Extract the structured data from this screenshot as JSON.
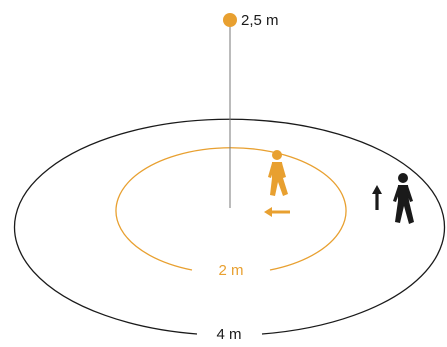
{
  "sensor": {
    "height_label": "2,5 m"
  },
  "outer_zone": {
    "diameter_label": "4 m"
  },
  "inner_zone": {
    "diameter_label": "2 m"
  },
  "colors": {
    "accent": "#e8a030",
    "ink": "#1a1a1a",
    "line": "#555555",
    "background": "#ffffff"
  },
  "icons": {
    "inner_walker": "walking-person-icon",
    "inner_motion": "left-arrow-icon",
    "outer_walker": "walking-person-icon",
    "outer_motion": "up-arrow-icon"
  }
}
